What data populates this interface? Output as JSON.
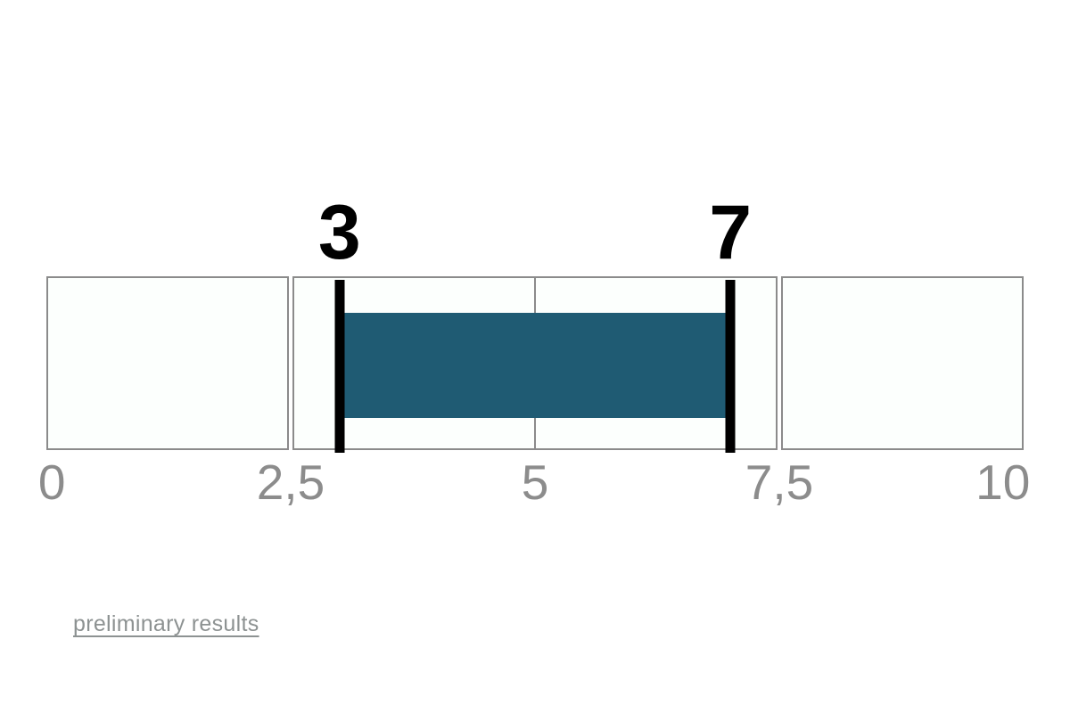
{
  "page": {
    "background": "#ffffff"
  },
  "chart_data": {
    "type": "range-gauge",
    "title": "",
    "axis": {
      "min": 0,
      "max": 10,
      "ticks": [
        {
          "value": 0,
          "label": "0"
        },
        {
          "value": 2.5,
          "label": "2,5"
        },
        {
          "value": 5,
          "label": "5"
        },
        {
          "value": 7.5,
          "label": "7,5"
        },
        {
          "value": 10,
          "label": "10"
        }
      ]
    },
    "segments": [
      {
        "from": 0,
        "to": 2.5
      },
      {
        "from": 2.5,
        "to": 7.5,
        "divider_at": 5
      },
      {
        "from": 7.5,
        "to": 10
      }
    ],
    "range": {
      "low": 3,
      "high": 7,
      "low_label": "3",
      "high_label": "7"
    },
    "colors": {
      "bar": "#1f5b73",
      "marker": "#000000",
      "segment_fill": "#fcfffd",
      "segment_border": "#8b8b8b",
      "tick_text": "#8c8c8c",
      "value_label_text": "#000000",
      "link_text": "#8d9292"
    }
  },
  "footer": {
    "link_label": "preliminary results"
  }
}
